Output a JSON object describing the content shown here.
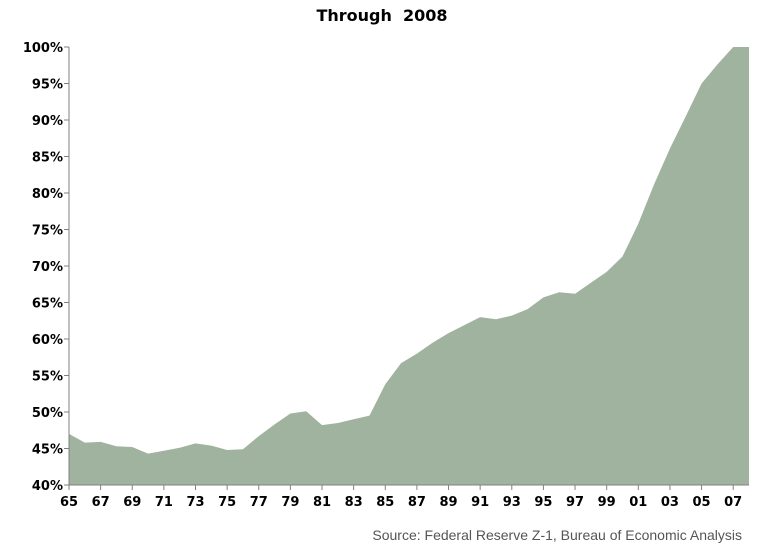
{
  "chart_data": {
    "type": "area",
    "title": "Through  2008",
    "source": "Source: Federal Reserve Z-1, Bureau of Economic Analysis",
    "xlabel": "",
    "ylabel": "",
    "x_tick_labels": [
      "65",
      "67",
      "69",
      "71",
      "73",
      "75",
      "77",
      "79",
      "81",
      "83",
      "85",
      "87",
      "89",
      "91",
      "93",
      "95",
      "97",
      "99",
      "01",
      "03",
      "05",
      "07"
    ],
    "y_tick_labels": [
      "40%",
      "45%",
      "50%",
      "55%",
      "60%",
      "65%",
      "70%",
      "75%",
      "80%",
      "85%",
      "90%",
      "95%",
      "100%"
    ],
    "ylim": [
      40,
      100
    ],
    "xlim": [
      1965,
      2008
    ],
    "grid": false,
    "legend": "none",
    "fill_color": "#a0b39f",
    "series": [
      {
        "x": [
          1965,
          1966,
          1967,
          1968,
          1969,
          1970,
          1971,
          1972,
          1973,
          1974,
          1975,
          1976,
          1977,
          1978,
          1979,
          1980,
          1981,
          1982,
          1983,
          1984,
          1985,
          1986,
          1987,
          1988,
          1989,
          1990,
          1991,
          1992,
          1993,
          1994,
          1995,
          1996,
          1997,
          1998,
          1999,
          2000,
          2001,
          2002,
          2003,
          2004,
          2005,
          2006,
          2007,
          2008
        ],
        "values": [
          47,
          45.8,
          45.9,
          45.3,
          45.2,
          44.3,
          44.7,
          45.1,
          45.7,
          45.4,
          44.8,
          44.9,
          46.7,
          48.3,
          49.8,
          50.1,
          48.2,
          48.5,
          49.0,
          49.5,
          53.8,
          56.7,
          58.0,
          59.5,
          60.8,
          61.9,
          63.0,
          62.7,
          63.2,
          64.1,
          65.7,
          66.4,
          66.2,
          67.7,
          69.2,
          71.3,
          75.8,
          81.2,
          86.1,
          90.5,
          95.0,
          97.6,
          100,
          100
        ]
      }
    ]
  }
}
